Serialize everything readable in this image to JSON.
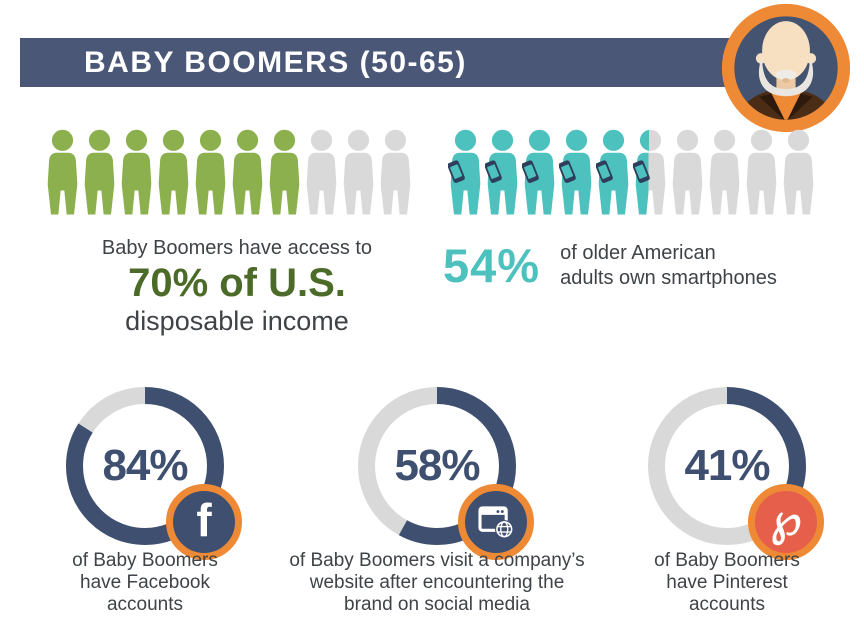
{
  "header": {
    "title": "BABY BOOMERS (50-65)",
    "bar_color": "#4a5776",
    "text_color": "#ffffff"
  },
  "avatar": {
    "name": "baby-boomer-man-avatar",
    "ring_color": "#ee8a35"
  },
  "income_stat": {
    "intro": "Baby Boomers have access to",
    "highlight": "70% of U.S.",
    "outro": "disposable income",
    "icons_total": 10,
    "icons_filled": 7,
    "filled_color": "#8bb04d",
    "empty_color": "#d9d9d9",
    "highlight_color": "#4c6b28"
  },
  "smartphone_stat": {
    "value": "54%",
    "line1": "of older American",
    "line2": "adults own smartphones",
    "icons_total": 10,
    "icons_filled": 5.4,
    "filled_color": "#4dc1bd",
    "empty_color": "#d9d9d9",
    "phone_color": "#2e3e5c"
  },
  "donuts": [
    {
      "value": 84,
      "label": "84%",
      "icon": "facebook-icon",
      "caption_lines": [
        "of Baby Boomers",
        "have Facebook",
        "accounts"
      ]
    },
    {
      "value": 58,
      "label": "58%",
      "icon": "website-icon",
      "caption_lines": [
        "of Baby Boomers visit a company’s",
        "website after encountering the",
        "brand on social media"
      ]
    },
    {
      "value": 41,
      "label": "41%",
      "icon": "pinterest-icon",
      "caption_lines": [
        "of Baby Boomers",
        "have Pinterest",
        "accounts"
      ]
    }
  ],
  "colors": {
    "navy": "#3f4f70",
    "track": "#d9d9d9",
    "orange": "#ee8a35",
    "pinterest_red": "#e65f4a",
    "text": "#3f4347",
    "teal": "#4dc1bd",
    "green": "#8bb04d",
    "dark_green": "#4c6b28"
  },
  "chart_data": [
    {
      "type": "pictogram",
      "title": "Baby Boomers have access to 70% of U.S. disposable income",
      "value": 70,
      "unit": "%",
      "icons_total": 10,
      "icons_filled": 7,
      "fill_color": "#8bb04d",
      "empty_color": "#d9d9d9"
    },
    {
      "type": "pictogram",
      "title": "54% of older American adults own smartphones",
      "value": 54,
      "unit": "%",
      "icons_total": 10,
      "icons_filled": 5.4,
      "fill_color": "#4dc1bd",
      "empty_color": "#d9d9d9"
    },
    {
      "type": "donut",
      "title": "of Baby Boomers have Facebook accounts",
      "value": 84,
      "unit": "%",
      "fill_color": "#3f4f70",
      "track_color": "#d9d9d9",
      "start": "top",
      "direction": "clockwise"
    },
    {
      "type": "donut",
      "title": "of Baby Boomers visit a company’s website after encountering the brand on social media",
      "value": 58,
      "unit": "%",
      "fill_color": "#3f4f70",
      "track_color": "#d9d9d9",
      "start": "top",
      "direction": "clockwise"
    },
    {
      "type": "donut",
      "title": "of Baby Boomers have Pinterest accounts",
      "value": 41,
      "unit": "%",
      "fill_color": "#3f4f70",
      "track_color": "#d9d9d9",
      "start": "top",
      "direction": "clockwise"
    }
  ]
}
